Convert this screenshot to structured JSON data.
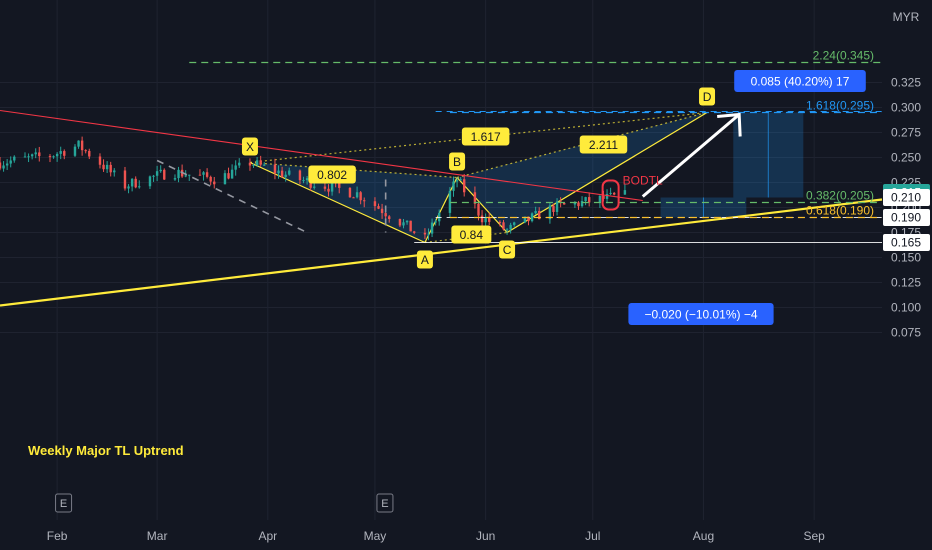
{
  "currency": "MYR",
  "chart_data": {
    "type": "candlestick",
    "title": "",
    "currency": "MYR",
    "y_range": [
      0.06,
      0.355
    ],
    "x_range": [
      "2023-01-16",
      "2023-09-20"
    ],
    "price_ticks": [
      "0.325",
      "0.300",
      "0.275",
      "0.250",
      "0.225",
      "0.200",
      "0.175",
      "0.150",
      "0.125",
      "0.100",
      "0.075"
    ],
    "time_ticks": [
      {
        "label": "Feb",
        "date": "2023-02-01"
      },
      {
        "label": "Mar",
        "date": "2023-03-01"
      },
      {
        "label": "Apr",
        "date": "2023-04-01"
      },
      {
        "label": "May",
        "date": "2023-05-01"
      },
      {
        "label": "Jun",
        "date": "2023-06-01"
      },
      {
        "label": "Jul",
        "date": "2023-07-01"
      },
      {
        "label": "Aug",
        "date": "2023-08-01"
      },
      {
        "label": "Sep",
        "date": "2023-09-01"
      }
    ],
    "price_tags": [
      {
        "value": "0.215",
        "price": 0.215,
        "bg": "#26a69a",
        "fg": "#ffffff"
      },
      {
        "value": "0.210",
        "price": 0.21,
        "bg": "#ffffff",
        "fg": "#131722"
      },
      {
        "value": "0.190",
        "price": 0.19,
        "bg": "#ffffff",
        "fg": "#131722"
      },
      {
        "value": "0.165",
        "price": 0.165,
        "bg": "#ffffff",
        "fg": "#131722"
      }
    ],
    "harmonic_pattern": {
      "points": [
        {
          "label": "X",
          "date": "2023-03-27",
          "price": 0.245
        },
        {
          "label": "A",
          "date": "2023-05-15",
          "price": 0.165
        },
        {
          "label": "B",
          "date": "2023-05-24",
          "price": 0.23
        },
        {
          "label": "C",
          "date": "2023-06-07",
          "price": 0.175
        },
        {
          "label": "D",
          "date": "2023-08-02",
          "price": 0.295
        }
      ],
      "ratios": [
        {
          "value": "0.802",
          "date": "2023-04-19",
          "price": 0.233
        },
        {
          "value": "0.84",
          "date": "2023-05-28",
          "price": 0.173
        },
        {
          "value": "1.617",
          "date": "2023-06-01",
          "price": 0.271
        },
        {
          "value": "2.211",
          "date": "2023-07-04",
          "price": 0.263
        }
      ]
    },
    "fib_levels": [
      {
        "label": "2.24(0.345)",
        "price": 0.345,
        "color": "#66bb6a"
      },
      {
        "label": "1.618(0.295)",
        "price": 0.295,
        "color": "#2196f3"
      },
      {
        "label": "0.382(0.205)",
        "price": 0.205,
        "color": "#66bb6a"
      },
      {
        "label": "0.618(0.190)",
        "price": 0.19,
        "color": "#fbc02d"
      }
    ],
    "target_box": {
      "label": "0.085 (40.20%) 17",
      "price": 0.3,
      "date": "2023-08-20"
    },
    "stop_box": {
      "label": "−0.020 (−10.01%) −4",
      "price": 0.177,
      "date": "2023-08-03"
    },
    "annotations": [
      {
        "text": "BODTL",
        "color": "#f23645"
      },
      {
        "text": "Weekly Major TL Uptrend",
        "color": "#ffeb3b"
      }
    ],
    "trendlines": [
      {
        "name": "weekly-uptrend",
        "from": {
          "date": "2023-01-16",
          "price": 0.102
        },
        "to": {
          "date": "2023-09-20",
          "price": 0.208
        },
        "color": "#ffeb3b"
      },
      {
        "name": "downtrend",
        "from": {
          "date": "2023-01-16",
          "price": 0.297
        },
        "to": {
          "date": "2023-07-15",
          "price": 0.207
        },
        "color": "#f23645"
      }
    ],
    "projection_arrow": {
      "from": {
        "date": "2023-07-15",
        "price": 0.211
      },
      "to": {
        "date": "2023-08-11",
        "price": 0.293
      }
    },
    "horizontal_lines": [
      {
        "price": 0.296,
        "color": "#2196f3",
        "dashed": true
      },
      {
        "price": 0.19,
        "color": "#ffffff",
        "dashed": true
      },
      {
        "price": 0.165,
        "color": "#ffffff",
        "dashed": false
      }
    ],
    "colors": {
      "up": "#26a69a",
      "down": "#ef5350",
      "background": "#131722"
    }
  }
}
